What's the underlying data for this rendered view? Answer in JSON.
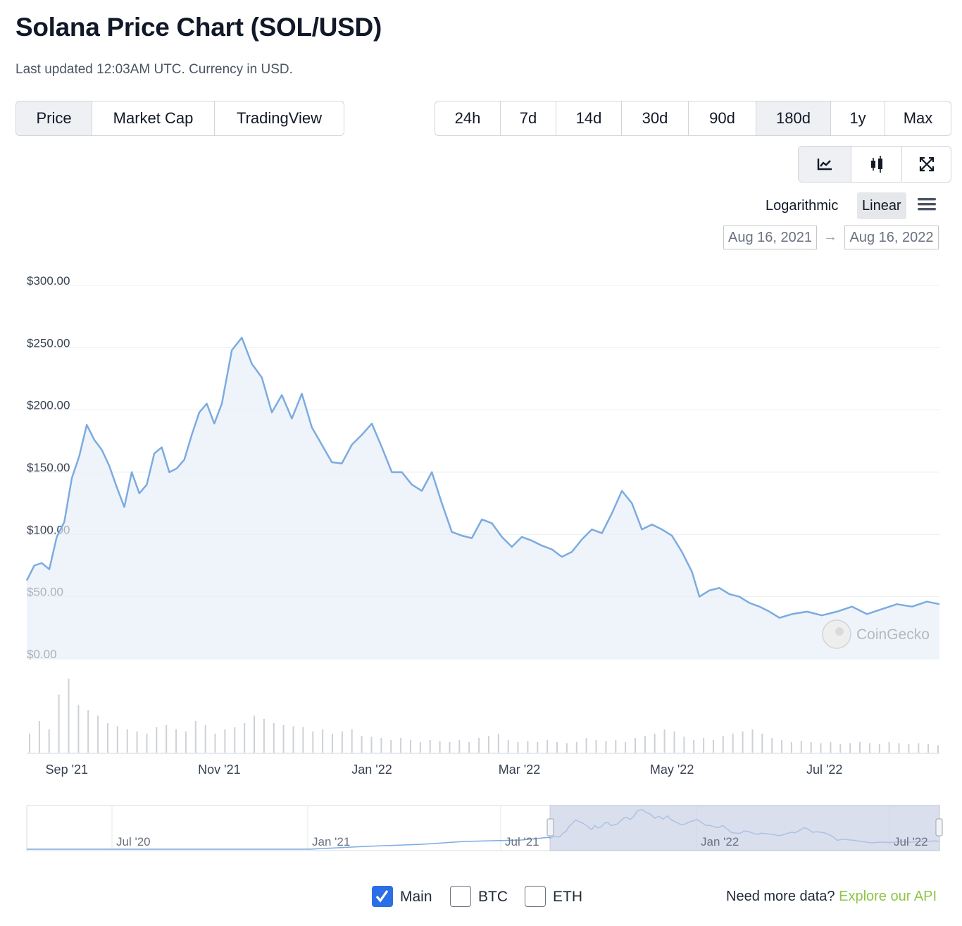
{
  "header": {
    "title": "Solana Price Chart (SOL/USD)",
    "subtitle": "Last updated 12:03AM UTC. Currency in USD."
  },
  "tabs": [
    {
      "label": "Price",
      "active": true
    },
    {
      "label": "Market Cap",
      "active": false
    },
    {
      "label": "TradingView",
      "active": false
    }
  ],
  "ranges": [
    {
      "label": "24h",
      "active": false
    },
    {
      "label": "7d",
      "active": false
    },
    {
      "label": "14d",
      "active": false
    },
    {
      "label": "30d",
      "active": false
    },
    {
      "label": "90d",
      "active": false
    },
    {
      "label": "180d",
      "active": false
    },
    {
      "label": "1y",
      "active": true
    },
    {
      "label": "Max",
      "active": false
    }
  ],
  "chart_type_buttons": [
    {
      "icon": "line-chart-icon",
      "active": true
    },
    {
      "icon": "candlestick-icon",
      "active": false
    },
    {
      "icon": "fullscreen-icon",
      "active": false
    }
  ],
  "scale": {
    "logarithmic": "Logarithmic",
    "linear": "Linear",
    "selected": "linear",
    "menu_icon": "hamburger-menu-icon"
  },
  "date_range": {
    "from": "Aug 16, 2021",
    "to": "Aug 16, 2022",
    "arrow_icon": "arrow-right-icon"
  },
  "watermark": "CoinGecko",
  "navigator": {
    "labels": [
      "Jul '20",
      "Jan '21",
      "Jul '21",
      "Jan '22",
      "Jul '22"
    ]
  },
  "compare": [
    {
      "label": "Main",
      "checked": true
    },
    {
      "label": "BTC",
      "checked": false
    },
    {
      "label": "ETH",
      "checked": false
    }
  ],
  "footer": {
    "text": "Need more data?",
    "link": "Explore our API"
  },
  "colors": {
    "line": "#7cabe0",
    "fill": "#e6eef9",
    "api_link": "#8dc647",
    "checkbox": "#2b6fe6"
  },
  "chart_data": {
    "type": "line",
    "title": "",
    "xlabel": "",
    "ylabel": "",
    "yticks": [
      "$300.00",
      "$250.00",
      "$200.00",
      "$150.00",
      "$100.00",
      "$50.00",
      "$0.00"
    ],
    "xticks": [
      "Sep '21",
      "Nov '21",
      "Jan '22",
      "Mar '22",
      "May '22",
      "Jul '22"
    ],
    "ylim": [
      0,
      300
    ],
    "x_range": [
      "2021-08-16",
      "2022-08-16"
    ],
    "grid": true,
    "series": [
      {
        "x": [
          "2021-08-16",
          "2021-08-19",
          "2021-08-22",
          "2021-08-25",
          "2021-08-28",
          "2021-08-31",
          "2021-09-03",
          "2021-09-06",
          "2021-09-09",
          "2021-09-12",
          "2021-09-15",
          "2021-09-18",
          "2021-09-21",
          "2021-09-24",
          "2021-09-27",
          "2021-09-30",
          "2021-10-03",
          "2021-10-06",
          "2021-10-09",
          "2021-10-12",
          "2021-10-15",
          "2021-10-18",
          "2021-10-21",
          "2021-10-24",
          "2021-10-27",
          "2021-10-30",
          "2021-11-02",
          "2021-11-06",
          "2021-11-10",
          "2021-11-14",
          "2021-11-18",
          "2021-11-22",
          "2021-11-26",
          "2021-11-30",
          "2021-12-04",
          "2021-12-08",
          "2021-12-12",
          "2021-12-16",
          "2021-12-20",
          "2021-12-24",
          "2021-12-28",
          "2022-01-01",
          "2022-01-05",
          "2022-01-09",
          "2022-01-13",
          "2022-01-17",
          "2022-01-21",
          "2022-01-25",
          "2022-01-29",
          "2022-02-02",
          "2022-02-06",
          "2022-02-10",
          "2022-02-14",
          "2022-02-18",
          "2022-02-22",
          "2022-02-26",
          "2022-03-02",
          "2022-03-06",
          "2022-03-10",
          "2022-03-14",
          "2022-03-18",
          "2022-03-22",
          "2022-03-26",
          "2022-03-30",
          "2022-04-03",
          "2022-04-07",
          "2022-04-11",
          "2022-04-15",
          "2022-04-19",
          "2022-04-23",
          "2022-04-27",
          "2022-05-01",
          "2022-05-05",
          "2022-05-09",
          "2022-05-12",
          "2022-05-16",
          "2022-05-20",
          "2022-05-24",
          "2022-05-28",
          "2022-06-01",
          "2022-06-05",
          "2022-06-09",
          "2022-06-13",
          "2022-06-18",
          "2022-06-24",
          "2022-06-30",
          "2022-07-06",
          "2022-07-12",
          "2022-07-18",
          "2022-07-24",
          "2022-07-30",
          "2022-08-05",
          "2022-08-11",
          "2022-08-16"
        ],
        "y": [
          63,
          75,
          77,
          72,
          98,
          110,
          145,
          163,
          188,
          176,
          168,
          155,
          138,
          122,
          150,
          133,
          140,
          165,
          170,
          150,
          153,
          160,
          180,
          198,
          205,
          189,
          205,
          248,
          258,
          237,
          226,
          198,
          212,
          193,
          213,
          186,
          172,
          158,
          157,
          172,
          180,
          189,
          170,
          150,
          150,
          140,
          135,
          150,
          125,
          102,
          99,
          97,
          112,
          109,
          98,
          90,
          98,
          95,
          91,
          88,
          82,
          86,
          96,
          104,
          101,
          117,
          135,
          125,
          104,
          108,
          104,
          99,
          86,
          70,
          50,
          55,
          57,
          52,
          50,
          45,
          42,
          38,
          33,
          36,
          38,
          35,
          38,
          42,
          36,
          40,
          44,
          42,
          46,
          44
        ]
      }
    ],
    "volume": {
      "note": "relative bar heights, unlabeled axis",
      "values": [
        18,
        30,
        22,
        55,
        70,
        45,
        40,
        35,
        28,
        25,
        22,
        20,
        18,
        24,
        26,
        22,
        20,
        30,
        26,
        18,
        22,
        24,
        28,
        35,
        32,
        28,
        26,
        25,
        24,
        20,
        22,
        18,
        20,
        22,
        16,
        15,
        14,
        12,
        14,
        12,
        10,
        12,
        11,
        10,
        12,
        10,
        14,
        16,
        18,
        12,
        10,
        11,
        10,
        12,
        10,
        9,
        10,
        14,
        12,
        11,
        12,
        10,
        14,
        16,
        18,
        22,
        20,
        15,
        12,
        14,
        12,
        16,
        18,
        20,
        22,
        18,
        14,
        12,
        10,
        11,
        10,
        9,
        10,
        8,
        9,
        10,
        9,
        8,
        10,
        9,
        8,
        9,
        8,
        7
      ]
    }
  }
}
